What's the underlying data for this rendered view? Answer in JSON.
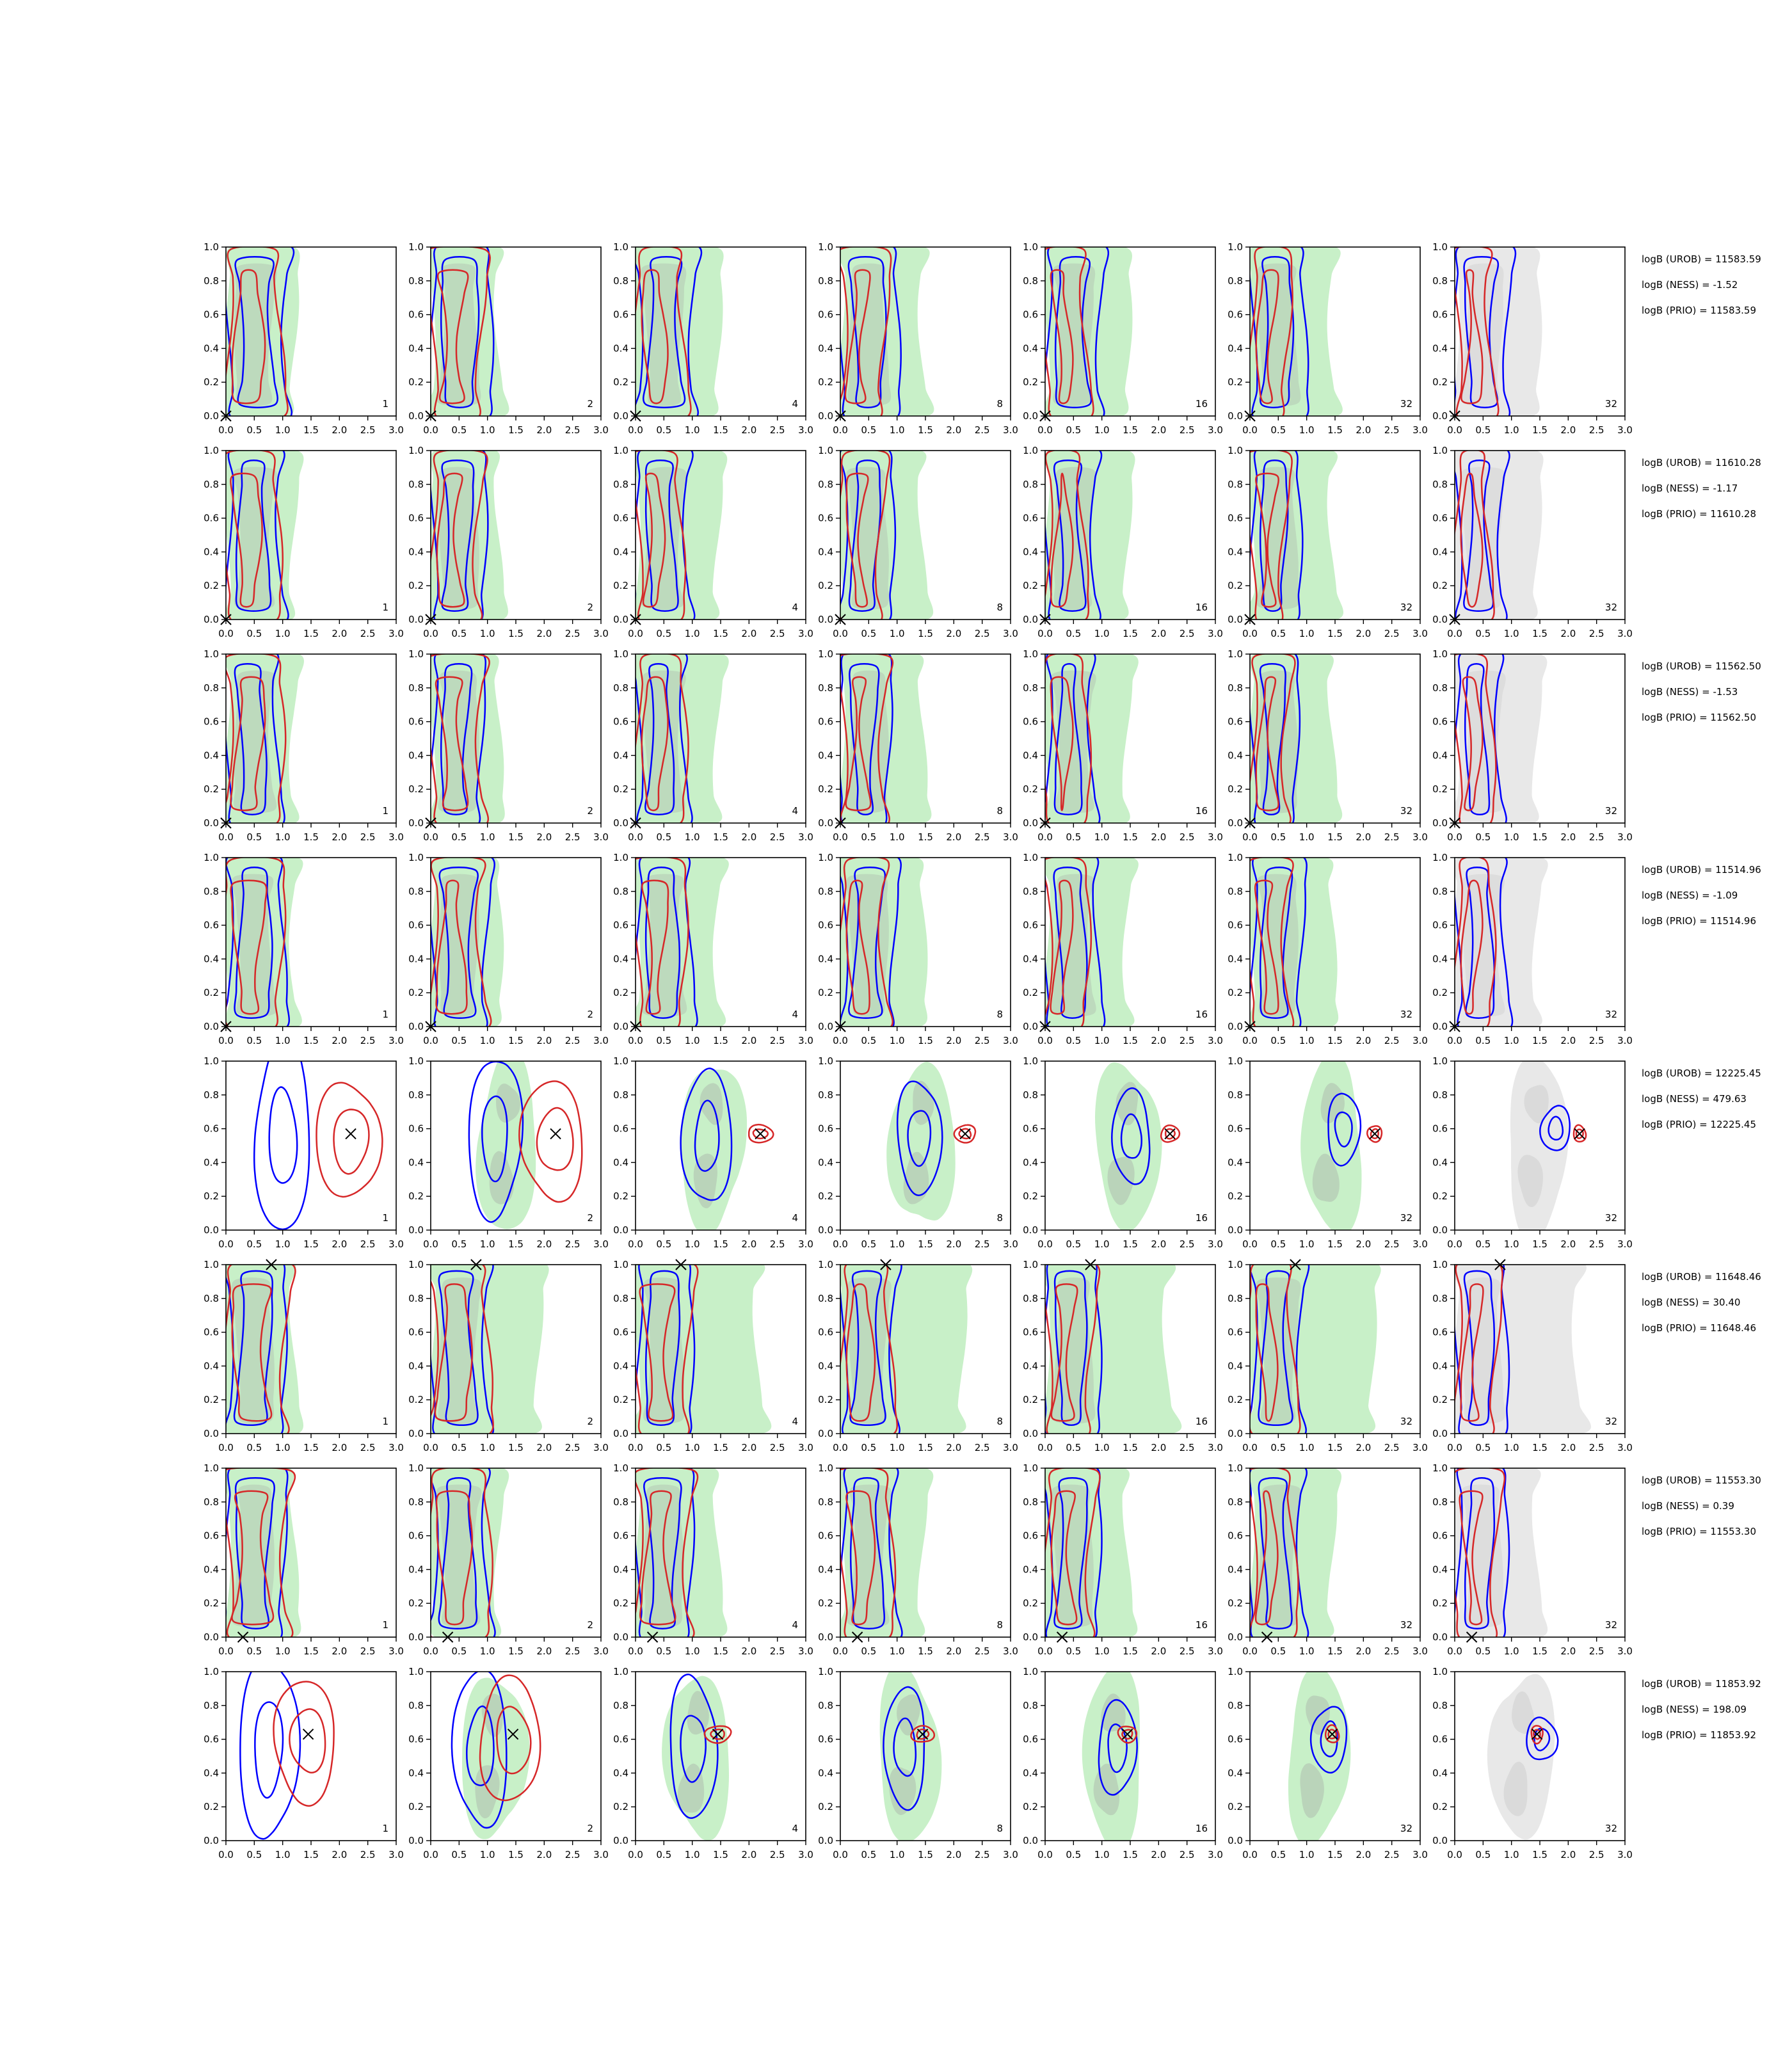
{
  "colors": {
    "robust": "#d62728",
    "ness": "#0000ff",
    "prior_fill_outer": "#c8f0c8",
    "prior_fill_inner": "#b4c8b4",
    "gray_fill_outer": "#e8e8e8",
    "gray_fill_inner": "#d4d4d4",
    "axis": "#000000"
  },
  "axes": {
    "xlim": [
      0,
      3.0
    ],
    "ylim": [
      0,
      1.0
    ],
    "xticks": [
      "0.0",
      "0.5",
      "1.0",
      "1.5",
      "2.0",
      "2.5",
      "3.0"
    ],
    "yticks": [
      "0.0",
      "0.2",
      "0.4",
      "0.6",
      "0.8",
      "1.0"
    ]
  },
  "column_labels": [
    "1",
    "2",
    "4",
    "8",
    "16",
    "32",
    "32"
  ],
  "chart_data": {
    "type": "contour-grid",
    "grid": {
      "rows": 8,
      "cols": 7
    },
    "rows": [
      {
        "row": 1,
        "truth": [
          0.0,
          0.0
        ],
        "shape": "band",
        "rc": 0.45,
        "bc": 0.7,
        "annotations": [
          "logB (UROB) = 11583.59",
          "logB (NESS) = -1.52",
          "logB (PRIO) = 11583.59"
        ]
      },
      {
        "row": 2,
        "truth": [
          0.0,
          0.0
        ],
        "shape": "band",
        "rc": 0.4,
        "bc": 0.6,
        "annotations": [
          "logB (UROB) = 11610.28",
          "logB (NESS) = -1.17",
          "logB (PRIO) = 11610.28"
        ]
      },
      {
        "row": 3,
        "truth": [
          0.0,
          0.0
        ],
        "shape": "band",
        "rc": 0.45,
        "bc": 0.55,
        "annotations": [
          "logB (UROB) = 11562.50",
          "logB (NESS) = -1.53",
          "logB (PRIO) = 11562.50"
        ]
      },
      {
        "row": 4,
        "truth": [
          0.0,
          0.0
        ],
        "shape": "band",
        "rc": 0.45,
        "bc": 0.65,
        "annotations": [
          "logB (UROB) = 11514.96",
          "logB (NESS) = -1.09",
          "logB (PRIO) = 11514.96"
        ]
      },
      {
        "row": 5,
        "truth": [
          2.2,
          0.57
        ],
        "shape": "blob",
        "rc": 2.05,
        "bc": 1.0,
        "annotations": [
          "logB (UROB) = 12225.45",
          "logB (NESS) = 479.63",
          "logB (PRIO) = 12225.45"
        ]
      },
      {
        "row": 6,
        "truth": [
          0.8,
          1.0
        ],
        "shape": "top",
        "rc": 0.55,
        "bc": 0.65,
        "annotations": [
          "logB (UROB) = 11648.46",
          "logB (NESS) = 30.40",
          "logB (PRIO) = 11648.46"
        ]
      },
      {
        "row": 7,
        "truth": [
          0.3,
          0.0
        ],
        "shape": "band",
        "rc": 0.55,
        "bc": 0.65,
        "annotations": [
          "logB (UROB) = 11553.30",
          "logB (NESS) = 0.39",
          "logB (PRIO) = 11553.30"
        ]
      },
      {
        "row": 8,
        "truth": [
          1.45,
          0.63
        ],
        "shape": "blob",
        "rc": 1.3,
        "bc": 0.75,
        "annotations": [
          "logB (UROB) = 11853.92",
          "logB (NESS) = 198.09",
          "logB (PRIO) = 11853.92"
        ]
      }
    ]
  }
}
